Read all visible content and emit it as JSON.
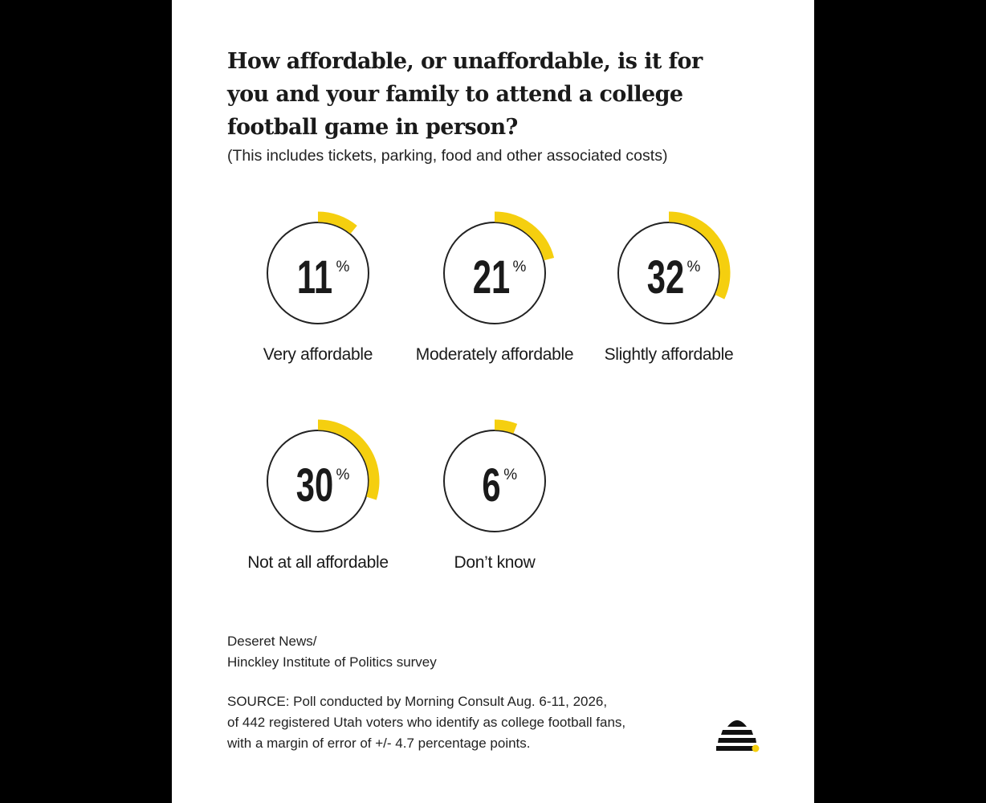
{
  "title": "How affordable, or unaffordable, is it for you and your family to attend a college football game in person?",
  "subtitle": "(This includes tickets, parking, food and other associated costs)",
  "credit": {
    "line1": "Deseret News/",
    "line2": "Hinckley Institute of Politics survey"
  },
  "source": {
    "line1": "SOURCE: Poll conducted by Morning Consult Aug. 6-11, 2026,",
    "line2": "of 442 registered Utah voters who identify as college football fans,",
    "line3": "with a margin of error of +/- 4.7 percentage points."
  },
  "colors": {
    "accent": "#f5cf0f",
    "ring": "#222222",
    "text": "#1a1a1a",
    "background": "#ffffff",
    "page_background": "#000000"
  },
  "logo_icon": "beehive-icon",
  "chart_data": {
    "type": "pie",
    "unit": "%",
    "categories": [
      "Very affordable",
      "Moderately affordable",
      "Slightly affordable",
      "Not at all affordable",
      "Don’t know"
    ],
    "values": [
      11,
      21,
      32,
      30,
      6
    ]
  }
}
